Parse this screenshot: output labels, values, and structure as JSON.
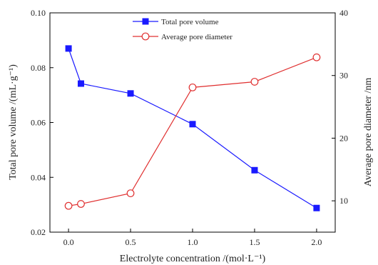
{
  "chart_data": {
    "type": "line",
    "x": [
      0.0,
      0.1,
      0.5,
      1.0,
      1.5,
      2.0
    ],
    "x_ticks": [
      "0.0",
      "0.5",
      "1.0",
      "1.5",
      "2.0"
    ],
    "x_tick_values": [
      0.0,
      0.5,
      1.0,
      1.5,
      2.0
    ],
    "xlim": [
      -0.15,
      2.15
    ],
    "xlabel": "Electrolyte concentration /(mol·L⁻¹)",
    "ylabel_left": "Total pore volume /(mL·g⁻¹)",
    "ylim_left": [
      0.02,
      0.1
    ],
    "y_ticks_left": [
      "0.02",
      "0.04",
      "0.06",
      "0.08",
      "0.10"
    ],
    "y_tick_values_left": [
      0.02,
      0.04,
      0.06,
      0.08,
      0.1
    ],
    "ylabel_right": "Average pore diameter /nm",
    "ylim_right": [
      5,
      40
    ],
    "y_ticks_right": [
      "10",
      "20",
      "30",
      "40"
    ],
    "y_tick_values_right": [
      10,
      20,
      30,
      40
    ],
    "grid": false,
    "legend_position": "top-center",
    "series": [
      {
        "name": "Total pore volume",
        "axis": "left",
        "color": "#1a1aff",
        "marker": "filled-square",
        "values": [
          0.087,
          0.0742,
          0.0706,
          0.0594,
          0.0426,
          0.0288
        ]
      },
      {
        "name": "Average pore diameter",
        "axis": "right",
        "color": "#e03030",
        "marker": "open-circle",
        "values": [
          9.2,
          9.5,
          11.2,
          28.1,
          29.0,
          32.9
        ]
      }
    ]
  }
}
